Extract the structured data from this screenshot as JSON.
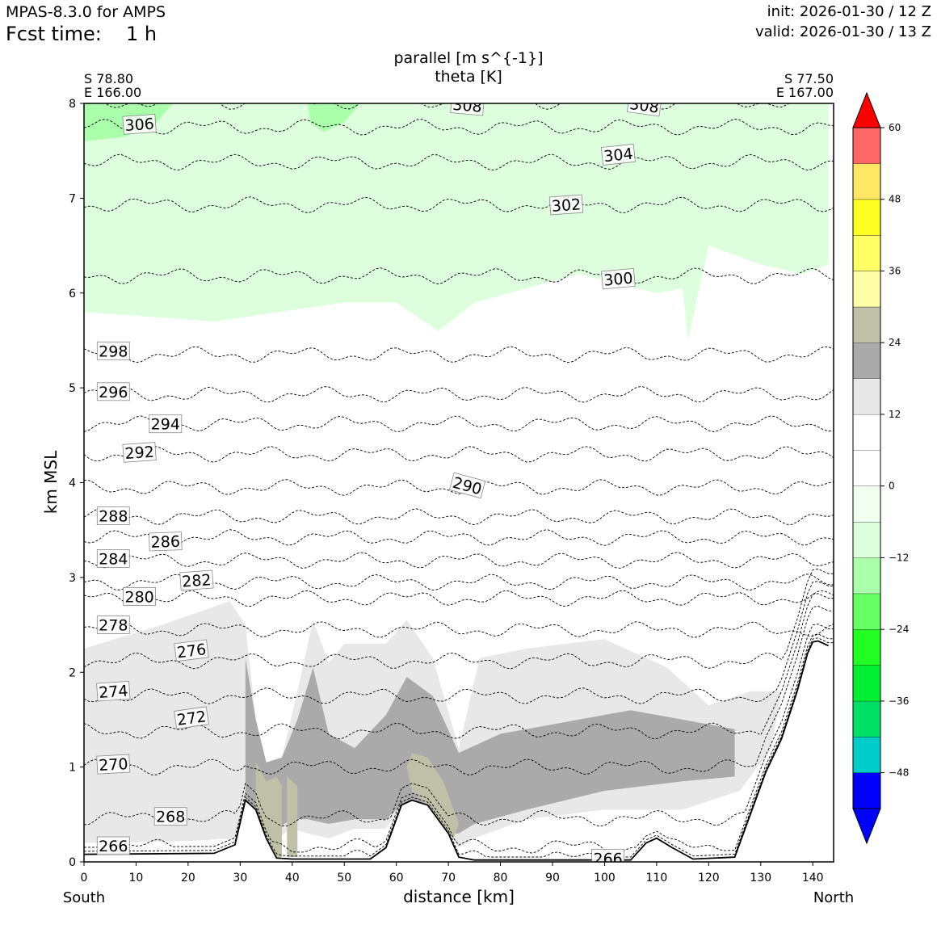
{
  "header": {
    "model": "MPAS-8.3.0 for AMPS",
    "fcst_label": "Fcst time:",
    "fcst_value": "1 h",
    "init": "init: 2026-01-30 / 12 Z",
    "valid": "valid: 2026-01-30 / 13 Z"
  },
  "chart_data": {
    "type": "cross-section",
    "title_fill": "parallel [m s^{-1}]",
    "title_contour": "theta [K]",
    "xlabel": "distance [km]",
    "ylabel": "km MSL",
    "xlim": [
      0,
      144
    ],
    "ylim": [
      0,
      8
    ],
    "xticks": [
      0,
      10,
      20,
      30,
      40,
      50,
      60,
      70,
      80,
      90,
      100,
      110,
      120,
      130,
      140
    ],
    "yticks": [
      0,
      1,
      2,
      3,
      4,
      5,
      6,
      7,
      8
    ],
    "start": {
      "lat": "S 78.80",
      "lon": "E 166.00",
      "label": "South"
    },
    "end": {
      "lat": "S 77.50",
      "lon": "E 167.00",
      "label": "North"
    },
    "colorbar": {
      "levels": [
        -54,
        -48,
        -42,
        -36,
        -30,
        -24,
        -18,
        -12,
        -6,
        0,
        6,
        12,
        18,
        24,
        30,
        36,
        42,
        48,
        54,
        60
      ],
      "colors": [
        "#0000ff",
        "#00cccc",
        "#00e066",
        "#00ee33",
        "#22ff22",
        "#66ff66",
        "#aaffaa",
        "#ddffdd",
        "#f0fff0",
        "#ffffff",
        "#ffffff",
        "#e8e8e8",
        "#aaaaaa",
        "#c0c0a8",
        "#ffffa8",
        "#ffff66",
        "#ffff22",
        "#ffe766",
        "#ff6666",
        "#ff0000"
      ],
      "ticks": [
        -48,
        -36,
        -24,
        -12,
        0,
        12,
        24,
        36,
        48,
        60
      ],
      "tick_labels": [
        "−48",
        "−36",
        "−24",
        "−12",
        "0",
        "12",
        "24",
        "36",
        "48",
        "60"
      ],
      "under_color": "#0000ff",
      "over_color": "#ff0000"
    },
    "terrain": [
      [
        0,
        0.08
      ],
      [
        25,
        0.09
      ],
      [
        29,
        0.18
      ],
      [
        31,
        0.65
      ],
      [
        33,
        0.55
      ],
      [
        35,
        0.25
      ],
      [
        37,
        0.04
      ],
      [
        40,
        0.03
      ],
      [
        55,
        0.03
      ],
      [
        58,
        0.15
      ],
      [
        61,
        0.6
      ],
      [
        63,
        0.65
      ],
      [
        66,
        0.6
      ],
      [
        70,
        0.3
      ],
      [
        72,
        0.05
      ],
      [
        75,
        0.02
      ],
      [
        105,
        0.02
      ],
      [
        108,
        0.2
      ],
      [
        110,
        0.25
      ],
      [
        113,
        0.15
      ],
      [
        117,
        0.03
      ],
      [
        125,
        0.05
      ],
      [
        128,
        0.5
      ],
      [
        131,
        0.95
      ],
      [
        134,
        1.3
      ],
      [
        137,
        1.8
      ],
      [
        139,
        2.2
      ],
      [
        140,
        2.32
      ],
      [
        141,
        2.33
      ],
      [
        143,
        2.28
      ]
    ],
    "wind_regions": [
      {
        "value": -9,
        "pts": [
          [
            0,
            5.8
          ],
          [
            25,
            5.7
          ],
          [
            50,
            5.9
          ],
          [
            60,
            5.9
          ],
          [
            68,
            5.6
          ],
          [
            75,
            5.9
          ],
          [
            95,
            6.2
          ],
          [
            110,
            6.0
          ],
          [
            115,
            6.05
          ],
          [
            116,
            5.5
          ],
          [
            120,
            6.5
          ],
          [
            130,
            6.3
          ],
          [
            138,
            6.2
          ],
          [
            143,
            6.3
          ],
          [
            143,
            8
          ],
          [
            0,
            8
          ]
        ]
      },
      {
        "value": -15,
        "pts": [
          [
            0,
            7.6
          ],
          [
            8,
            7.65
          ],
          [
            14,
            7.8
          ],
          [
            17,
            8
          ],
          [
            0,
            8
          ]
        ]
      },
      {
        "value": -15,
        "pts": [
          [
            43,
            8
          ],
          [
            43.5,
            7.8
          ],
          [
            46,
            7.7
          ],
          [
            50,
            7.8
          ],
          [
            53,
            8
          ]
        ]
      },
      {
        "value": 9,
        "pts": [
          [
            0,
            2.35
          ],
          [
            20,
            2.6
          ],
          [
            28,
            2.95
          ],
          [
            33,
            3.1
          ],
          [
            37,
            2.7
          ],
          [
            42,
            3.1
          ],
          [
            48,
            2.6
          ],
          [
            60,
            2.8
          ],
          [
            75,
            2.9
          ],
          [
            90,
            3.0
          ],
          [
            105,
            2.95
          ],
          [
            120,
            2.6
          ],
          [
            130,
            2.5
          ],
          [
            138,
            2.1
          ],
          [
            140,
            1.6
          ],
          [
            135,
            1.0
          ],
          [
            130,
            0.6
          ],
          [
            125,
            0.2
          ],
          [
            115,
            0.05
          ],
          [
            105,
            0.03
          ],
          [
            80,
            0.03
          ],
          [
            72,
            0.05
          ],
          [
            70,
            0.3
          ],
          [
            66,
            0.6
          ],
          [
            63,
            0.65
          ],
          [
            61,
            0.6
          ],
          [
            58,
            0.15
          ],
          [
            55,
            0.03
          ],
          [
            40,
            0.03
          ],
          [
            37,
            0.04
          ],
          [
            35,
            0.25
          ],
          [
            33,
            0.55
          ],
          [
            31,
            0.65
          ],
          [
            29,
            0.18
          ],
          [
            25,
            0.09
          ],
          [
            0,
            0.08
          ]
        ]
      },
      {
        "value": 15,
        "pts": [
          [
            0,
            2.25
          ],
          [
            15,
            2.5
          ],
          [
            28,
            2.75
          ],
          [
            31,
            2.5
          ],
          [
            33,
            1.5
          ],
          [
            35,
            1.05
          ],
          [
            38,
            1.1
          ],
          [
            41,
            1.8
          ],
          [
            44,
            2.55
          ],
          [
            47,
            2.1
          ],
          [
            50,
            2.3
          ],
          [
            58,
            2.3
          ],
          [
            62,
            2.55
          ],
          [
            67,
            2.15
          ],
          [
            72,
            1.2
          ],
          [
            76,
            2.15
          ],
          [
            85,
            2.25
          ],
          [
            100,
            2.35
          ],
          [
            112,
            2.05
          ],
          [
            120,
            1.65
          ],
          [
            128,
            1.8
          ],
          [
            134,
            1.8
          ],
          [
            132,
            1.2
          ],
          [
            126,
            0.75
          ],
          [
            115,
            0.55
          ],
          [
            100,
            0.55
          ],
          [
            85,
            0.45
          ],
          [
            75,
            0.25
          ],
          [
            72,
            0.15
          ],
          [
            70,
            0.3
          ],
          [
            66,
            0.6
          ],
          [
            63,
            0.65
          ],
          [
            61,
            0.6
          ],
          [
            58,
            0.35
          ],
          [
            52,
            0.35
          ],
          [
            47,
            0.25
          ],
          [
            43,
            0.3
          ],
          [
            40,
            0.35
          ],
          [
            37,
            0.25
          ],
          [
            35,
            0.25
          ],
          [
            33,
            0.55
          ],
          [
            31,
            0.65
          ],
          [
            29,
            0.25
          ],
          [
            20,
            0.22
          ],
          [
            0,
            0.2
          ]
        ]
      },
      {
        "value": 21,
        "pts": [
          [
            31,
            2.15
          ],
          [
            33,
            1.5
          ],
          [
            35,
            1.05
          ],
          [
            38,
            1.1
          ],
          [
            41,
            1.5
          ],
          [
            44,
            2.05
          ],
          [
            47,
            1.35
          ],
          [
            52,
            1.2
          ],
          [
            58,
            1.55
          ],
          [
            62,
            1.95
          ],
          [
            67,
            1.75
          ],
          [
            72,
            1.15
          ],
          [
            80,
            1.35
          ],
          [
            95,
            1.5
          ],
          [
            105,
            1.6
          ],
          [
            115,
            1.5
          ],
          [
            125,
            1.4
          ],
          [
            125,
            0.9
          ],
          [
            115,
            0.85
          ],
          [
            100,
            0.75
          ],
          [
            85,
            0.55
          ],
          [
            75,
            0.4
          ],
          [
            72,
            0.3
          ],
          [
            70,
            0.3
          ],
          [
            66,
            0.6
          ],
          [
            63,
            0.65
          ],
          [
            61,
            0.6
          ],
          [
            58,
            0.45
          ],
          [
            52,
            0.45
          ],
          [
            47,
            0.4
          ],
          [
            43,
            0.45
          ],
          [
            40,
            0.45
          ],
          [
            37,
            0.35
          ],
          [
            35,
            0.3
          ],
          [
            33,
            0.55
          ],
          [
            31,
            0.65
          ]
        ]
      },
      {
        "value": 27,
        "pts": [
          [
            33,
            1.05
          ],
          [
            35,
            0.85
          ],
          [
            37,
            0.9
          ],
          [
            38,
            0.8
          ],
          [
            38,
            0.05
          ],
          [
            37,
            0.05
          ],
          [
            35,
            0.3
          ],
          [
            33,
            0.55
          ]
        ]
      },
      {
        "value": 27,
        "pts": [
          [
            63,
            1.15
          ],
          [
            66,
            1.1
          ],
          [
            69,
            0.85
          ],
          [
            72,
            0.4
          ],
          [
            71,
            0.25
          ],
          [
            70,
            0.3
          ],
          [
            66,
            0.6
          ],
          [
            63,
            0.75
          ],
          [
            62,
            1.0
          ]
        ]
      },
      {
        "value": 27,
        "pts": [
          [
            39,
            0.9
          ],
          [
            41,
            0.8
          ],
          [
            41,
            0.05
          ],
          [
            39,
            0.05
          ]
        ]
      }
    ],
    "theta_contours": [
      {
        "theta": 266,
        "base": 0.16,
        "label": "266",
        "label_x": 3,
        "label_y": 0.17,
        "label_rot": 0
      },
      {
        "theta": 266,
        "base": 0.04,
        "label": "266",
        "label_x": 98,
        "label_y": 0.04,
        "label_rot": 0
      },
      {
        "theta": 268,
        "base": 0.46,
        "label": "268",
        "label_x": 14,
        "label_y": 0.48,
        "label_rot": 0
      },
      {
        "theta": 270,
        "base": 1.0,
        "label": "270",
        "label_x": 3,
        "label_y": 1.03,
        "label_rot": -3
      },
      {
        "theta": 272,
        "base": 1.38,
        "label": "272",
        "label_x": 18,
        "label_y": 1.52,
        "label_rot": -8
      },
      {
        "theta": 274,
        "base": 1.75,
        "label": "274",
        "label_x": 3,
        "label_y": 1.8,
        "label_rot": -4
      },
      {
        "theta": 276,
        "base": 2.12,
        "label": "276",
        "label_x": 18,
        "label_y": 2.23,
        "label_rot": -7
      },
      {
        "theta": 278,
        "base": 2.45,
        "label": "278",
        "label_x": 3,
        "label_y": 2.5,
        "label_rot": 0
      },
      {
        "theta": 280,
        "base": 2.78,
        "label": "280",
        "label_x": 8,
        "label_y": 2.8,
        "label_rot": 0
      },
      {
        "theta": 282,
        "base": 2.95,
        "label": "282",
        "label_x": 19,
        "label_y": 2.97,
        "label_rot": -4
      },
      {
        "theta": 284,
        "base": 3.18,
        "label": "284",
        "label_x": 3,
        "label_y": 3.2,
        "label_rot": 0
      },
      {
        "theta": 286,
        "base": 3.42,
        "label": "286",
        "label_x": 13,
        "label_y": 3.38,
        "label_rot": -2
      },
      {
        "theta": 288,
        "base": 3.64,
        "label": "288",
        "label_x": 3,
        "label_y": 3.65,
        "label_rot": 0
      },
      {
        "theta": 290,
        "base": 3.95,
        "label": "290",
        "label_x": 71,
        "label_y": 3.97,
        "label_rot": 15
      },
      {
        "theta": 292,
        "base": 4.3,
        "label": "292",
        "label_x": 8,
        "label_y": 4.32,
        "label_rot": -4
      },
      {
        "theta": 294,
        "base": 4.62,
        "label": "294",
        "label_x": 13,
        "label_y": 4.62,
        "label_rot": 0
      },
      {
        "theta": 296,
        "base": 4.93,
        "label": "296",
        "label_x": 3,
        "label_y": 4.96,
        "label_rot": 0
      },
      {
        "theta": 298,
        "base": 5.35,
        "label": "298",
        "label_x": 3,
        "label_y": 5.39,
        "label_rot": 0
      },
      {
        "theta": 300,
        "base": 6.18,
        "label": "300",
        "label_x": 100,
        "label_y": 6.15,
        "label_rot": -5
      },
      {
        "theta": 302,
        "base": 6.93,
        "label": "302",
        "label_x": 90,
        "label_y": 6.93,
        "label_rot": -4
      },
      {
        "theta": 304,
        "base": 7.38,
        "label": "304",
        "label_x": 100,
        "label_y": 7.46,
        "label_rot": -6
      },
      {
        "theta": 306,
        "base": 7.75,
        "label": "306",
        "label_x": 8,
        "label_y": 7.78,
        "label_rot": -4
      },
      {
        "theta": 308,
        "base": 8.02,
        "label": "308",
        "label_x": 71,
        "label_y": 7.98,
        "label_rot": 5
      },
      {
        "theta": 308,
        "base": 8.02,
        "label": "308",
        "label_x": 105,
        "label_y": 7.98,
        "label_rot": 8
      }
    ]
  }
}
